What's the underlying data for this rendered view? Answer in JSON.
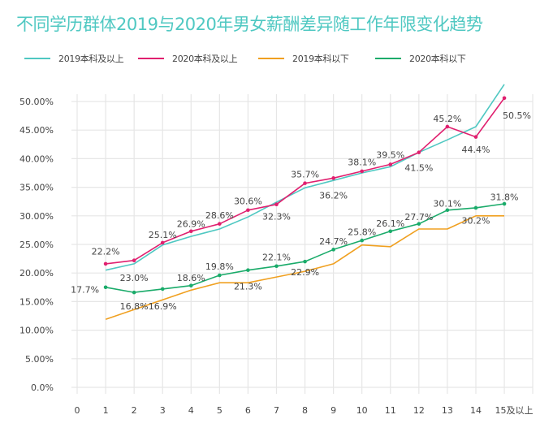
{
  "chart_data": {
    "type": "line",
    "title": "不同学历群体2019与2020年男女薪酬差异随工作年限变化趋势",
    "xlabel": "",
    "ylabel": "",
    "categories": [
      "0",
      "1",
      "2",
      "3",
      "4",
      "5",
      "6",
      "7",
      "8",
      "9",
      "10",
      "11",
      "12",
      "13",
      "14",
      "15及以上"
    ],
    "y_ticks": [
      "0.0%",
      "5.00%",
      "10.00%",
      "15.00%",
      "20.00%",
      "25.00%",
      "30.00%",
      "35.00%",
      "40.00%",
      "45.00%",
      "50.00%"
    ],
    "ylim": [
      0,
      50
    ],
    "grid": true,
    "legend_position": "top",
    "series": [
      {
        "name": "2019本科及以上",
        "color": "#4fc8c2",
        "markers": false,
        "x": [
          1,
          2,
          3,
          4,
          5,
          6,
          7,
          8,
          9,
          10,
          11,
          12,
          13,
          14,
          15
        ],
        "values": [
          20.5,
          21.6,
          24.9,
          26.4,
          27.7,
          29.8,
          32.4,
          34.9,
          36.2,
          37.5,
          38.6,
          41.1,
          43.3,
          45.6,
          53.0
        ]
      },
      {
        "name": "2020本科及以上",
        "color": "#e0206f",
        "markers": true,
        "x": [
          1,
          2,
          3,
          4,
          5,
          6,
          7,
          8,
          9,
          10,
          11,
          12,
          13,
          14,
          15
        ],
        "values": [
          21.6,
          22.2,
          25.3,
          27.3,
          28.6,
          31.0,
          32.0,
          35.7,
          36.6,
          37.8,
          39.0,
          41.1,
          45.6,
          43.8,
          50.6
        ]
      },
      {
        "name": "2019本科以下",
        "color": "#f0a020",
        "markers": false,
        "x": [
          1,
          2,
          3,
          4,
          5,
          6,
          7,
          8,
          9,
          10,
          11,
          12,
          13,
          14,
          15
        ],
        "values": [
          11.9,
          13.6,
          15.3,
          17.0,
          18.3,
          18.3,
          19.3,
          20.3,
          21.6,
          24.9,
          24.6,
          27.7,
          27.7,
          30.0,
          30.0
        ]
      },
      {
        "name": "2020本科以下",
        "color": "#1aab6a",
        "markers": true,
        "x": [
          1,
          2,
          3,
          4,
          5,
          6,
          7,
          8,
          9,
          10,
          11,
          12,
          13,
          14,
          15
        ],
        "values": [
          17.5,
          16.6,
          17.2,
          17.8,
          19.6,
          20.5,
          21.2,
          22.0,
          24.1,
          25.7,
          27.3,
          28.6,
          31.0,
          31.4,
          32.1
        ]
      }
    ],
    "annotations": [
      {
        "x": 1,
        "text": "22.2%",
        "y": 23.8,
        "align": "center"
      },
      {
        "x": 3,
        "text": "25.1%",
        "y": 26.7,
        "align": "center"
      },
      {
        "x": 4,
        "text": "26.9%",
        "y": 28.6,
        "align": "center"
      },
      {
        "x": 5,
        "text": "28.6%",
        "y": 30.1,
        "align": "center"
      },
      {
        "x": 6,
        "text": "30.6%",
        "y": 32.6,
        "align": "center"
      },
      {
        "x": 7,
        "text": "32.3%",
        "y": 29.9,
        "align": "center"
      },
      {
        "x": 8,
        "text": "35.7%",
        "y": 37.3,
        "align": "center"
      },
      {
        "x": 9,
        "text": "36.2%",
        "y": 33.6,
        "align": "center"
      },
      {
        "x": 10,
        "text": "38.1%",
        "y": 39.4,
        "align": "center"
      },
      {
        "x": 11,
        "text": "39.5%",
        "y": 40.7,
        "align": "center"
      },
      {
        "x": 12,
        "text": "41.5%",
        "y": 38.4,
        "align": "center"
      },
      {
        "x": 13,
        "text": "45.2%",
        "y": 47.0,
        "align": "center"
      },
      {
        "x": 14,
        "text": "44.4%",
        "y": 41.6,
        "align": "center"
      },
      {
        "x": 15,
        "text": "50.5%",
        "y": 47.6,
        "align": "left"
      },
      {
        "x": 1,
        "text": "17.7%",
        "y": 17.1,
        "align": "right"
      },
      {
        "x": 2,
        "text": "23.0%",
        "y": 19.2,
        "align": "center"
      },
      {
        "x": 2,
        "text": "16.8%",
        "y": 14.2,
        "align": "center"
      },
      {
        "x": 3,
        "text": "16.9%",
        "y": 14.2,
        "align": "center"
      },
      {
        "x": 4,
        "text": "18.6%",
        "y": 19.2,
        "align": "center"
      },
      {
        "x": 5,
        "text": "19.8%",
        "y": 21.2,
        "align": "center"
      },
      {
        "x": 6,
        "text": "21.3%",
        "y": 17.7,
        "align": "center"
      },
      {
        "x": 7,
        "text": "22.1%",
        "y": 22.8,
        "align": "center"
      },
      {
        "x": 8,
        "text": "22.9%",
        "y": 20.2,
        "align": "center"
      },
      {
        "x": 9,
        "text": "24.7%",
        "y": 25.6,
        "align": "center"
      },
      {
        "x": 10,
        "text": "25.8%",
        "y": 27.2,
        "align": "center"
      },
      {
        "x": 11,
        "text": "26.1%",
        "y": 28.7,
        "align": "center"
      },
      {
        "x": 12,
        "text": "27.7%",
        "y": 29.8,
        "align": "center"
      },
      {
        "x": 13,
        "text": "30.1%",
        "y": 32.2,
        "align": "center"
      },
      {
        "x": 14,
        "text": "30.2%",
        "y": 29.2,
        "align": "center"
      },
      {
        "x": 15,
        "text": "31.8%",
        "y": 33.3,
        "align": "center"
      }
    ]
  }
}
